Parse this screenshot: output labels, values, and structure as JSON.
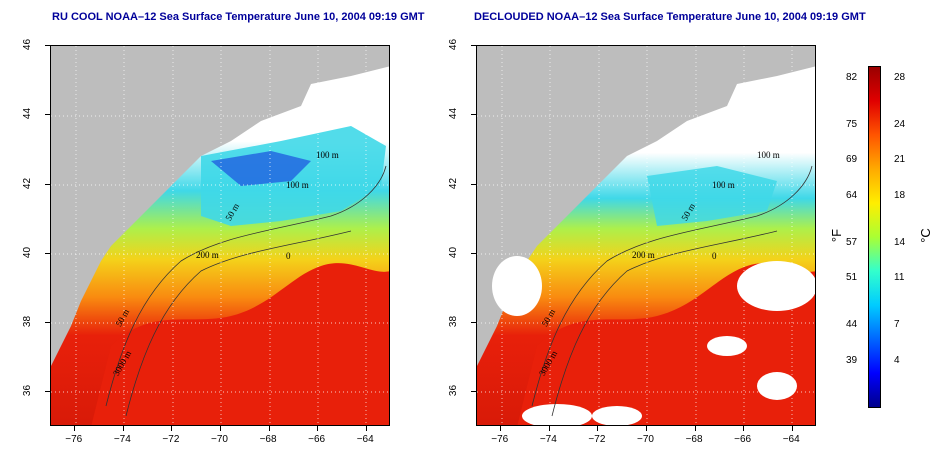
{
  "left_panel": {
    "title": "RU COOL NOAA–12 Sea Surface Temperature June 10, 2004 09:19 GMT",
    "isobaths": [
      "100 m",
      "100 m",
      "50 m",
      "200 m",
      "0",
      "50 m",
      "3000 m"
    ]
  },
  "right_panel": {
    "title": "DECLOUDED NOAA–12 Sea Surface Temperature June 10, 2004 09:19 GMT",
    "isobaths": [
      "100 m",
      "100 m",
      "50 m",
      "200 m",
      "0",
      "50 m",
      "3000 m"
    ]
  },
  "axes": {
    "x_ticks": [
      "−76",
      "−74",
      "−72",
      "−70",
      "−68",
      "−66",
      "−64"
    ],
    "x_values": [
      -76,
      -74,
      -72,
      -70,
      -68,
      -66,
      -64
    ],
    "x_range": [
      -77,
      -63
    ],
    "y_ticks": [
      "36",
      "38",
      "40",
      "42",
      "44",
      "46"
    ],
    "y_values": [
      36,
      38,
      40,
      42,
      44,
      46
    ],
    "y_range": [
      35,
      46
    ]
  },
  "colorbar": {
    "fahrenheit_ticks": [
      "82",
      "75",
      "69",
      "64",
      "57",
      "51",
      "44",
      "39"
    ],
    "celsius_ticks": [
      "28",
      "24",
      "21",
      "18",
      "14",
      "11",
      "7",
      "4"
    ],
    "celsius_values": [
      28,
      24,
      21,
      18,
      14,
      11,
      7,
      4
    ],
    "range_celsius": [
      0,
      29
    ],
    "unit_f": "°F",
    "unit_c": "°C",
    "colors": [
      "#00008b",
      "#0000ff",
      "#0066ff",
      "#00ccff",
      "#33ffcc",
      "#aaff33",
      "#ffee00",
      "#ffaa00",
      "#ff5500",
      "#e00000",
      "#9a0000"
    ]
  },
  "colors": {
    "land": "#bdbdbd",
    "title": "#00009a",
    "warm": "#e8200a",
    "orange": "#f98a10",
    "yellow": "#f4d21a",
    "cyan": "#3fd8e8",
    "blue": "#2060e0"
  }
}
